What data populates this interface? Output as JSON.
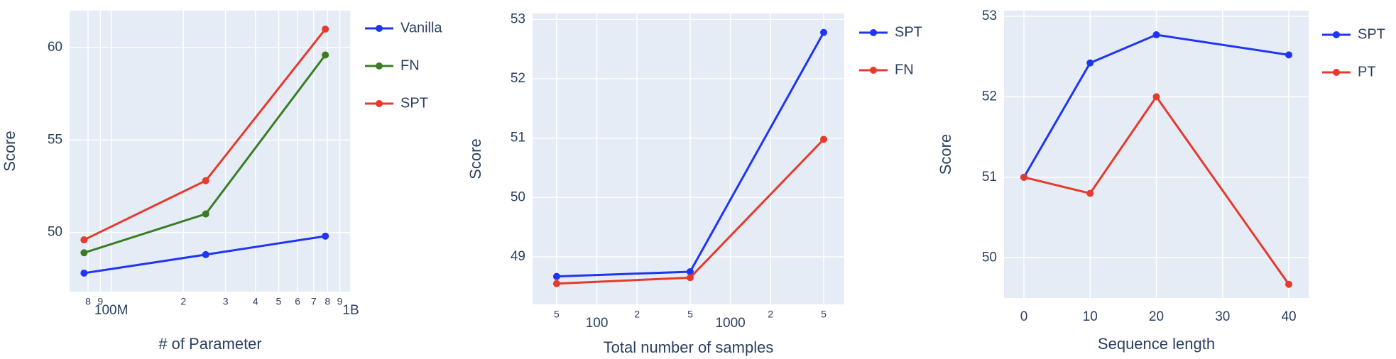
{
  "chart_data": [
    {
      "type": "line",
      "xscale": "log",
      "x_label": "# of Parameter",
      "y_label": "Score",
      "x": [
        77000000,
        248000000,
        783000000
      ],
      "series": [
        {
          "name": "Vanilla",
          "color": "#1f35f2",
          "values": [
            47.8,
            48.8,
            49.8
          ]
        },
        {
          "name": "FN",
          "color": "#3b7d23",
          "values": [
            48.9,
            51.0,
            59.6
          ]
        },
        {
          "name": "SPT",
          "color": "#e53a2c",
          "values": [
            49.6,
            52.8,
            61.0
          ]
        }
      ],
      "xlim": [
        67000000,
        1000000000
      ],
      "xticks": [
        {
          "value": 80000000,
          "label": "8"
        },
        {
          "value": 90000000,
          "label": "9"
        },
        {
          "value": 100000000,
          "label": "100M"
        },
        {
          "value": 200000000,
          "label": "2"
        },
        {
          "value": 300000000,
          "label": "3"
        },
        {
          "value": 400000000,
          "label": "4"
        },
        {
          "value": 500000000,
          "label": "5"
        },
        {
          "value": 600000000,
          "label": "6"
        },
        {
          "value": 700000000,
          "label": "7"
        },
        {
          "value": 800000000,
          "label": "8"
        },
        {
          "value": 900000000,
          "label": "9"
        },
        {
          "value": 1000000000,
          "label": "1B"
        }
      ],
      "ylim": [
        46.8,
        62.0
      ],
      "yticks": [
        50,
        55,
        60
      ],
      "grid": true
    },
    {
      "type": "line",
      "xscale": "log",
      "x_label": "Total number of samples",
      "y_label": "Score",
      "x": [
        50,
        500,
        5000
      ],
      "series": [
        {
          "name": "SPT",
          "color": "#1f35f2",
          "values": [
            48.67,
            48.75,
            52.78
          ]
        },
        {
          "name": "FN",
          "color": "#e53a2c",
          "values": [
            48.55,
            48.65,
            50.98
          ]
        }
      ],
      "xlim": [
        33,
        7130
      ],
      "xticks": [
        {
          "value": 50,
          "label": "5"
        },
        100,
        {
          "value": 200,
          "label": "2"
        },
        {
          "value": 500,
          "label": "5"
        },
        1000,
        {
          "value": 2000,
          "label": "2"
        },
        {
          "value": 5000,
          "label": "5"
        }
      ],
      "ylim": [
        48.2,
        53.1
      ],
      "yticks": [
        49,
        50,
        51,
        52,
        53
      ],
      "grid": true
    },
    {
      "type": "line",
      "xscale": "linear",
      "x_label": "Sequence length",
      "y_label": "Score",
      "x": [
        0,
        10,
        20,
        40
      ],
      "series": [
        {
          "name": "SPT",
          "color": "#1f35f2",
          "values": [
            51.0,
            52.42,
            52.77,
            52.52
          ]
        },
        {
          "name": "PT",
          "color": "#e53a2c",
          "values": [
            51.0,
            50.8,
            52.0,
            49.67
          ]
        }
      ],
      "xlim": [
        -3,
        43
      ],
      "xticks": [
        0,
        10,
        20,
        30,
        40
      ],
      "ylim": [
        49.5,
        53.07
      ],
      "yticks": [
        50,
        51,
        52,
        53
      ],
      "grid": true
    }
  ]
}
